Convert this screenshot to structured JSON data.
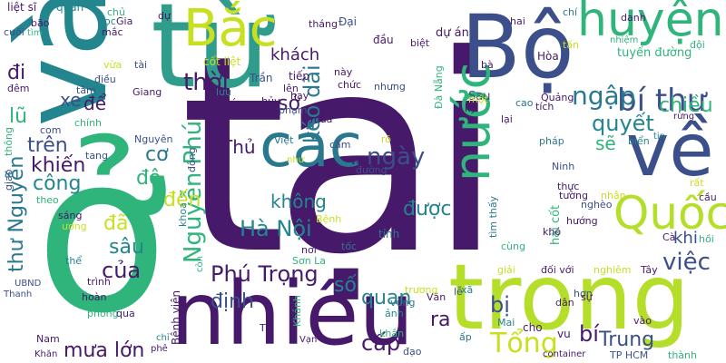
{
  "palette": {
    "dark_purple": "#46196a",
    "indigo": "#3b4f8a",
    "teal": "#23858e",
    "green": "#2fb47c",
    "lime": "#b5de2b"
  },
  "words": [
    {
      "text": "tại",
      "color": "#46196a"
    },
    {
      "text": "ở",
      "color": "#2fb47c"
    },
    {
      "text": "từ",
      "color": "#2f9c8c"
    },
    {
      "text": "và",
      "color": "#23858e"
    },
    {
      "text": "trong",
      "color": "#b5de2b"
    },
    {
      "text": "nhiều",
      "color": "#46196a"
    },
    {
      "text": "Bộ",
      "color": "#3b4f8a"
    },
    {
      "text": "về",
      "color": "#3b4f8a"
    },
    {
      "text": "các",
      "color": "#2a788e"
    },
    {
      "text": "Bắc",
      "color": "#c8e020"
    },
    {
      "text": "huyện",
      "color": "#2fb47c"
    },
    {
      "text": "nước",
      "color": "#2fb47c"
    },
    {
      "text": "Quốc",
      "color": "#b5de2b"
    },
    {
      "text": "bí thư",
      "color": "#3b4f8a"
    },
    {
      "text": "khách",
      "color": "#46196a"
    },
    {
      "text": "Phú Trọng",
      "color": "#46196a"
    },
    {
      "text": "Tổng",
      "color": "#c8e020"
    },
    {
      "text": "Nguyễn Phú",
      "color": "#2fb47c"
    },
    {
      "text": "Hà Nội",
      "color": "#23858e"
    },
    {
      "text": "không",
      "color": "#23858e"
    },
    {
      "text": "được",
      "color": "#23858e"
    },
    {
      "text": "ngày",
      "color": "#3b4f8a"
    },
    {
      "text": "thời",
      "color": "#46196a"
    },
    {
      "text": "kéo dài",
      "color": "#2a788e"
    },
    {
      "text": "ngập",
      "color": "#2a788e"
    },
    {
      "text": "chiều",
      "color": "#2fb47c"
    },
    {
      "text": "quyết",
      "color": "#23858e"
    },
    {
      "text": "việc",
      "color": "#3b4f8a"
    },
    {
      "text": "khi",
      "color": "#3b4f8a"
    },
    {
      "text": "sẽ",
      "color": "#2fb47c"
    },
    {
      "text": "sở",
      "color": "#46196a"
    },
    {
      "text": "Thủ",
      "color": "#46196a"
    },
    {
      "text": "trên",
      "color": "#3b4f8a"
    },
    {
      "text": "khiến",
      "color": "#46196a"
    },
    {
      "text": "công",
      "color": "#23858e"
    },
    {
      "text": "cơ",
      "color": "#2a788e"
    },
    {
      "text": "độ",
      "color": "#2fb47c"
    },
    {
      "text": "đến",
      "color": "#c8e020"
    },
    {
      "text": "sâu",
      "color": "#23858e"
    },
    {
      "text": "đã",
      "color": "#c8e020"
    },
    {
      "text": "của",
      "color": "#46196a"
    },
    {
      "text": "thư Nguyễn",
      "color": "#2a788e"
    },
    {
      "text": "định",
      "color": "#3b4f8a"
    },
    {
      "text": "số",
      "color": "#23858e"
    },
    {
      "text": "quan",
      "color": "#23858e"
    },
    {
      "text": "cấp",
      "color": "#46196a"
    },
    {
      "text": "ra",
      "color": "#46196a"
    },
    {
      "text": "bị",
      "color": "#3b4f8a"
    },
    {
      "text": "Trung",
      "color": "#3b4f8a"
    },
    {
      "text": "bí",
      "color": "#46196a"
    },
    {
      "text": "mưa lớn",
      "color": "#46196a"
    },
    {
      "text": "lũ",
      "color": "#2fb47c"
    },
    {
      "text": "đi",
      "color": "#46196a"
    },
    {
      "text": "xe",
      "color": "#3b4f8a"
    },
    {
      "text": "để",
      "color": "#46196a"
    },
    {
      "text": "trình",
      "color": "#46196a"
    },
    {
      "text": "Bệnh viện",
      "color": "#46196a"
    },
    {
      "text": "tuyến đường",
      "color": "#2fb47c"
    },
    {
      "text": "Sau",
      "color": "#3b4f8a"
    },
    {
      "text": "Hòa",
      "color": "#46196a"
    },
    {
      "text": "dự án",
      "color": "#46196a"
    },
    {
      "text": "đầu",
      "color": "#46196a"
    },
    {
      "text": "Đại",
      "color": "#3b4f8a"
    },
    {
      "text": "tháng",
      "color": "#46196a"
    },
    {
      "text": "liệt sĩ",
      "color": "#46196a"
    },
    {
      "text": "quân",
      "color": "#23858e"
    },
    {
      "text": "cốt liệt",
      "color": "#c8e020"
    },
    {
      "text": "Trần",
      "color": "#3b4f8a"
    },
    {
      "text": "tiếp",
      "color": "#46196a"
    },
    {
      "text": "lên",
      "color": "#46196a"
    },
    {
      "text": "phạm",
      "color": "#3b4f8a"
    },
    {
      "text": "xử lý",
      "color": "#46196a"
    },
    {
      "text": "lưu",
      "color": "#23858e"
    },
    {
      "text": "tâm",
      "color": "#3b4f8a"
    },
    {
      "text": "Giang",
      "color": "#46196a"
    },
    {
      "text": "vừa",
      "color": "#c8e020"
    },
    {
      "text": "tài",
      "color": "#3b4f8a"
    },
    {
      "text": "chính",
      "color": "#2fb47c"
    },
    {
      "text": "Nguyên",
      "color": "#3b4f8a"
    },
    {
      "text": "tin",
      "color": "#23858e"
    },
    {
      "text": "vào",
      "color": "#46196a"
    },
    {
      "text": "container",
      "color": "#46196a"
    },
    {
      "text": "TP HCM",
      "color": "#3b4f8a"
    },
    {
      "text": "thành",
      "color": "#2fb47c"
    },
    {
      "text": "TP",
      "color": "#46196a"
    },
    {
      "text": "Vạn",
      "color": "#46196a"
    },
    {
      "text": "đạo",
      "color": "#3b4f8a"
    },
    {
      "text": "khắn",
      "color": "#2fb47c"
    },
    {
      "text": "Mai",
      "color": "#23858e"
    },
    {
      "text": "cho",
      "color": "#46196a"
    },
    {
      "text": "vu",
      "color": "#46196a"
    },
    {
      "text": "Khăn",
      "color": "#46196a"
    },
    {
      "text": "Nam",
      "color": "#46196a"
    },
    {
      "text": "chỉ",
      "color": "#23858e"
    },
    {
      "text": "phê",
      "color": "#46196a"
    },
    {
      "text": "phòng",
      "color": "#2fb47c"
    },
    {
      "text": "qua",
      "color": "#46196a"
    },
    {
      "text": "hoàn",
      "color": "#46196a"
    },
    {
      "text": "UBND",
      "color": "#3b4f8a"
    },
    {
      "text": "Thanh",
      "color": "#3b4f8a"
    },
    {
      "text": "Sơn La",
      "color": "#2fb47c"
    },
    {
      "text": "nơi",
      "color": "#46196a"
    },
    {
      "text": "tỉnh",
      "color": "#2a788e"
    },
    {
      "text": "Việt",
      "color": "#2a788e"
    },
    {
      "text": "như",
      "color": "#c8e020"
    },
    {
      "text": "vi",
      "color": "#46196a"
    },
    {
      "text": "đường",
      "color": "#3b4f8a"
    },
    {
      "text": "rõ",
      "color": "#c8e020"
    },
    {
      "text": "cấm",
      "color": "#3b4f8a"
    },
    {
      "text": "Đức",
      "color": "#46196a"
    },
    {
      "text": "mưa",
      "color": "#46196a"
    },
    {
      "text": "chức",
      "color": "#46196a"
    },
    {
      "text": "này",
      "color": "#46196a"
    },
    {
      "text": "hủy",
      "color": "#46196a"
    },
    {
      "text": "hay",
      "color": "#46196a"
    },
    {
      "text": "nhưng",
      "color": "#3b4f8a"
    },
    {
      "text": "biệt",
      "color": "#46196a"
    },
    {
      "text": "hai",
      "color": "#46196a"
    },
    {
      "text": "chí",
      "color": "#2a788e"
    },
    {
      "text": "danh",
      "color": "#46196a"
    },
    {
      "text": "đội",
      "color": "#2fb47c"
    },
    {
      "text": "nhiệm",
      "color": "#2fb47c"
    },
    {
      "text": "tấn",
      "color": "#c8e020"
    },
    {
      "text": "Quảng",
      "color": "#46196a"
    },
    {
      "text": "tích",
      "color": "#46196a"
    },
    {
      "text": "cao",
      "color": "#2a788e"
    },
    {
      "text": "một",
      "color": "#c8e020"
    },
    {
      "text": "bà",
      "color": "#46196a"
    },
    {
      "text": "lại",
      "color": "#46196a"
    },
    {
      "text": "kỳ",
      "color": "#46196a"
    },
    {
      "text": "Đà Nẵng",
      "color": "#2fb47c"
    },
    {
      "text": "rừng",
      "color": "#46196a"
    },
    {
      "text": "biển",
      "color": "#23858e"
    },
    {
      "text": "tìm thấy",
      "color": "#2a788e"
    },
    {
      "text": "hài cốt",
      "color": "#2fb47c"
    },
    {
      "text": "hướng",
      "color": "#46196a"
    },
    {
      "text": "cùng",
      "color": "#2fb47c"
    },
    {
      "text": "khó",
      "color": "#46196a"
    },
    {
      "text": "giải",
      "color": "#c8e020"
    },
    {
      "text": "lễ",
      "color": "#3b4f8a"
    },
    {
      "text": "Văn",
      "color": "#46196a"
    },
    {
      "text": "trương",
      "color": "#c8e020"
    },
    {
      "text": "đối với",
      "color": "#46196a"
    },
    {
      "text": "nghiêm",
      "color": "#c8e020"
    },
    {
      "text": "Tây",
      "color": "#46196a"
    },
    {
      "text": "dân",
      "color": "#46196a"
    },
    {
      "text": "hơn",
      "color": "#3b4f8a"
    },
    {
      "text": "sự",
      "color": "#46196a"
    },
    {
      "text": "ấp",
      "color": "#2a788e"
    },
    {
      "text": "ảnh",
      "color": "#23858e"
    },
    {
      "text": "xã",
      "color": "#23858e"
    },
    {
      "text": "vùng",
      "color": "#2a788e"
    },
    {
      "text": "tốc",
      "color": "#2a788e"
    },
    {
      "text": "Khánh",
      "color": "#2fb47c"
    },
    {
      "text": "vật",
      "color": "#46196a"
    },
    {
      "text": "Bệnh",
      "color": "#c8e020"
    },
    {
      "text": "thực",
      "color": "#46196a"
    },
    {
      "text": "tường",
      "color": "#46196a"
    },
    {
      "text": "nghèo",
      "color": "#3b4f8a"
    },
    {
      "text": "nhân",
      "color": "#c8e020"
    },
    {
      "text": "Ninh",
      "color": "#3b4f8a"
    },
    {
      "text": "pháp",
      "color": "#2a788e"
    },
    {
      "text": "rất",
      "color": "#c8e020"
    },
    {
      "text": "cầu",
      "color": "#46196a"
    },
    {
      "text": "hồi",
      "color": "#2fb47c"
    },
    {
      "text": "Cà",
      "color": "#46196a"
    },
    {
      "text": "khoa",
      "color": "#23858e"
    },
    {
      "text": "còn",
      "color": "#2fb47c"
    },
    {
      "text": "giao",
      "color": "#3b4f8a"
    },
    {
      "text": "thông",
      "color": "#2fb47c"
    },
    {
      "text": "tuyển",
      "color": "#2fb47c"
    },
    {
      "text": "theo",
      "color": "#2fb47c"
    },
    {
      "text": "sáng",
      "color": "#46196a"
    },
    {
      "text": "ương",
      "color": "#c8e020"
    },
    {
      "text": "thể",
      "color": "#23858e"
    },
    {
      "text": "tang",
      "color": "#3b4f8a"
    },
    {
      "text": "com",
      "color": "#3b4f8a"
    },
    {
      "text": "đông",
      "color": "#3b4f8a"
    },
    {
      "text": "bão",
      "color": "#46196a"
    },
    {
      "text": "cuối",
      "color": "#3b4f8a"
    },
    {
      "text": "tìm",
      "color": "#2fb47c"
    },
    {
      "text": "mắc",
      "color": "#46196a"
    },
    {
      "text": "chủ",
      "color": "#2fb47c"
    },
    {
      "text": "học",
      "color": "#23858e"
    },
    {
      "text": "Gia",
      "color": "#46196a"
    },
    {
      "text": "dự",
      "color": "#46196a"
    },
    {
      "text": "đêm",
      "color": "#46196a"
    },
    {
      "text": "điều",
      "color": "#3b4f8a"
    }
  ]
}
